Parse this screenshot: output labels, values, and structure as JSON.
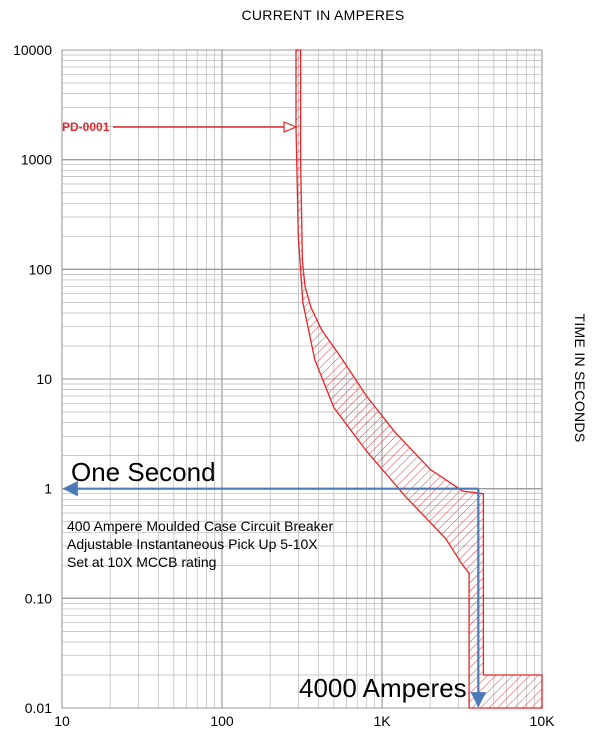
{
  "chart_data": {
    "type": "area",
    "title": "",
    "xlabel": "CURRENT IN AMPERES",
    "ylabel": "TIME IN SECONDS",
    "x_scale": "log",
    "y_scale": "log",
    "xlim": [
      10,
      10000
    ],
    "ylim": [
      0.01,
      10000
    ],
    "grid": true,
    "x_tick_labels": [
      {
        "value": 10,
        "label": "10"
      },
      {
        "value": 100,
        "label": "100"
      },
      {
        "value": 1000,
        "label": "1K"
      },
      {
        "value": 10000,
        "label": "10K"
      }
    ],
    "y_tick_labels": [
      {
        "value": 10000,
        "label": "10000"
      },
      {
        "value": 1000,
        "label": "1000"
      },
      {
        "value": 100,
        "label": "100"
      },
      {
        "value": 10,
        "label": "10"
      },
      {
        "value": 1,
        "label": "1"
      },
      {
        "value": 0.1,
        "label": "0.10"
      },
      {
        "value": 0.01,
        "label": "0.01"
      }
    ],
    "series": [
      {
        "name": "PD-0001",
        "color": "#e8252a",
        "fill_pattern": "hatch",
        "band_polygon": [
          [
            290,
            10000
          ],
          [
            310,
            10000
          ],
          [
            310,
            1000
          ],
          [
            318,
            120
          ],
          [
            330,
            70
          ],
          [
            360,
            45
          ],
          [
            420,
            28
          ],
          [
            550,
            16
          ],
          [
            800,
            7
          ],
          [
            1200,
            3.3
          ],
          [
            2000,
            1.5
          ],
          [
            3200,
            0.95
          ],
          [
            4300,
            0.9
          ],
          [
            4300,
            0.02
          ],
          [
            10000,
            0.02
          ],
          [
            10000,
            0.01
          ],
          [
            3500,
            0.01
          ],
          [
            3500,
            0.17
          ],
          [
            3200,
            0.2
          ],
          [
            2500,
            0.35
          ],
          [
            1400,
            0.85
          ],
          [
            800,
            2.2
          ],
          [
            500,
            5.5
          ],
          [
            380,
            15
          ],
          [
            320,
            50
          ],
          [
            300,
            200
          ],
          [
            290,
            2000
          ]
        ]
      }
    ],
    "reference_lines": [
      {
        "label": "One Second",
        "type": "horizontal",
        "y": 1,
        "x_from": 4000,
        "x_to": 10,
        "color": "#4a7ab8"
      },
      {
        "label": "4000 Amperes",
        "type": "vertical",
        "x": 4000,
        "y_from": 1,
        "y_to": 0.01,
        "color": "#4a7ab8"
      }
    ],
    "annotations": {
      "device_label": "PD-0001",
      "description": [
        "400 Ampere Moulded Case Circuit Breaker",
        "Adjustable Instantaneous Pick Up 5-10X",
        "Set at 10X MCCB rating"
      ]
    },
    "colors": {
      "curve": "#e8252a",
      "reference": "#4a7ab8",
      "grid": "#b8b8b8"
    }
  }
}
